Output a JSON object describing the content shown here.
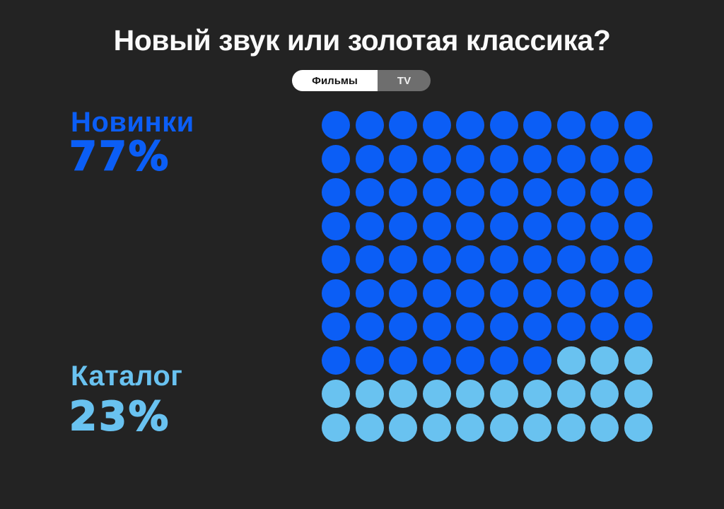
{
  "title": "Новый звук или золотая классика?",
  "toggle": {
    "options": [
      {
        "label": "Фильмы",
        "active": true
      },
      {
        "label": "TV",
        "active": false
      }
    ]
  },
  "chart_data": {
    "type": "waffle",
    "title": "Новый звук или золотая классика?",
    "grid": {
      "rows": 10,
      "columns": 10,
      "total_dots": 100,
      "unit_percent": 1
    },
    "series": [
      {
        "name": "Новинки",
        "value": 77,
        "value_label": "77%",
        "color": "#0B5EF6"
      },
      {
        "name": "Каталог",
        "value": 23,
        "value_label": "23%",
        "color": "#69C2F0"
      }
    ],
    "fill_order": "row-major-from-top-left",
    "legend_position": "left"
  },
  "colors": {
    "background": "#232323",
    "title_text": "#FAFAFA",
    "toggle_active_bg": "#FFFFFF",
    "toggle_active_text": "#141414",
    "toggle_inactive_bg": "#6E6E6E",
    "toggle_inactive_text": "#F0F0F0"
  }
}
